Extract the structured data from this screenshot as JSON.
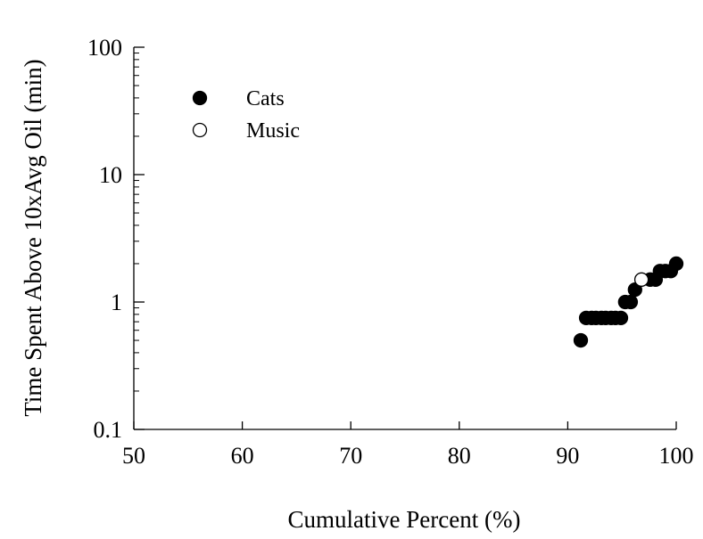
{
  "chart_data": {
    "type": "scatter",
    "xlabel": "Cumulative Percent (%)",
    "ylabel": "Time Spent Above 10xAvg Oil (min)",
    "xlim": [
      50,
      100
    ],
    "ylim": [
      0.1,
      100
    ],
    "yscale": "log",
    "x_ticks": [
      "50",
      "60",
      "70",
      "80",
      "90",
      "100"
    ],
    "y_ticks": [
      "0.1",
      "1",
      "10",
      "100"
    ],
    "grid": false,
    "legend_placement": "top-left",
    "series": [
      {
        "name": "Cats",
        "marker": "filled-circle",
        "color": "#000000",
        "x": [
          91.2,
          91.7,
          92.2,
          92.6,
          93.1,
          93.5,
          94.0,
          94.4,
          94.9,
          95.3,
          95.8,
          96.2,
          97.6,
          98.1,
          98.5,
          99.0,
          99.5,
          100.0
        ],
        "y": [
          0.5,
          0.75,
          0.75,
          0.75,
          0.75,
          0.75,
          0.75,
          0.75,
          0.75,
          1.0,
          1.0,
          1.25,
          1.5,
          1.5,
          1.75,
          1.75,
          1.75,
          2.0
        ]
      },
      {
        "name": "Music",
        "marker": "open-circle",
        "color": "#ffffff",
        "x": [
          96.8
        ],
        "y": [
          1.5
        ]
      }
    ]
  }
}
